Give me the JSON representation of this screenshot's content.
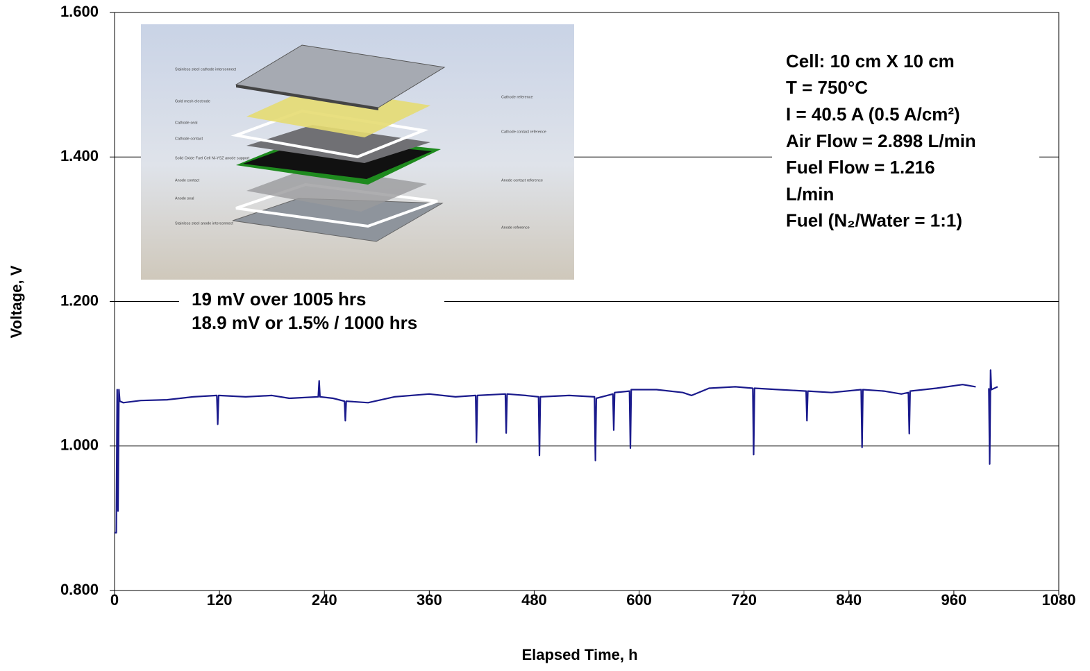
{
  "chart_data": {
    "type": "line",
    "x_label": "Elapsed Time, h",
    "y_label": "Voltage, V",
    "xlim": [
      0,
      1080
    ],
    "ylim": [
      0.8,
      1.6
    ],
    "xticks": [
      0,
      120,
      240,
      360,
      480,
      600,
      720,
      840,
      960,
      1080
    ],
    "yticks": [
      {
        "value": 0.8,
        "label": "0.800"
      },
      {
        "value": 1.0,
        "label": "1.000"
      },
      {
        "value": 1.2,
        "label": "1.200"
      },
      {
        "value": 1.4,
        "label": "1.400"
      },
      {
        "value": 1.6,
        "label": "1.600"
      }
    ],
    "grid": true,
    "x": [
      0,
      2,
      3,
      4,
      5,
      6,
      10,
      30,
      60,
      90,
      117,
      118,
      119,
      150,
      180,
      200,
      233,
      234,
      235,
      250,
      263,
      264,
      265,
      290,
      320,
      360,
      390,
      413,
      414,
      415,
      447,
      448,
      449,
      470,
      485,
      486,
      487,
      520,
      549,
      550,
      551,
      570,
      571,
      572,
      589,
      590,
      591,
      620,
      650,
      660,
      680,
      710,
      730,
      731,
      732,
      760,
      791,
      792,
      793,
      820,
      854,
      855,
      856,
      880,
      900,
      908,
      909,
      910,
      940,
      970,
      985,
      990,
      1000,
      1001,
      1002,
      1003,
      1010
    ],
    "series": [
      {
        "color": "#1a1a8c",
        "values": [
          0.88,
          0.88,
          1.078,
          0.91,
          1.078,
          1.062,
          1.06,
          1.063,
          1.064,
          1.068,
          1.07,
          1.03,
          1.07,
          1.068,
          1.07,
          1.066,
          1.068,
          1.09,
          1.068,
          1.066,
          1.062,
          1.035,
          1.062,
          1.06,
          1.068,
          1.072,
          1.068,
          1.07,
          1.005,
          1.07,
          1.072,
          1.018,
          1.072,
          1.07,
          1.068,
          0.987,
          1.068,
          1.07,
          1.068,
          0.98,
          1.066,
          1.072,
          1.022,
          1.074,
          1.076,
          0.997,
          1.078,
          1.078,
          1.074,
          1.07,
          1.08,
          1.082,
          1.08,
          0.988,
          1.08,
          1.078,
          1.076,
          1.035,
          1.076,
          1.074,
          1.078,
          0.998,
          1.078,
          1.076,
          1.072,
          1.074,
          1.017,
          1.076,
          1.08,
          1.085,
          1.082,
          null,
          1.08,
          0.975,
          1.105,
          1.078,
          1.082
        ]
      }
    ],
    "annotations": [
      {
        "lines": [
          "Cell: 10 cm X 10 cm",
          "T = 750°C",
          "I = 40.5 A (0.5 A/cm²)",
          "Air Flow = 2.898 L/min",
          "Fuel Flow = 1.216",
          "L/min",
          "Fuel (N₂/Water = 1:1)"
        ]
      },
      {
        "lines": [
          "19 mV over 1005 hrs",
          "18.9 mV or 1.5% / 1000 hrs"
        ]
      }
    ],
    "inset": {
      "left_labels": [
        "Stainless steel cathode interconnect",
        "Gold mesh electrode",
        "Cathode seal",
        "Cathode contact",
        "Solid Oxide Fuel Cell Ni-YSZ anode support",
        "Anode contact",
        "Anode seal",
        "Stainless steel anode interconnect"
      ],
      "right_labels": [
        "Cathode reference",
        "Cathode contact reference",
        "Anode contact reference",
        "Anode reference"
      ]
    }
  }
}
